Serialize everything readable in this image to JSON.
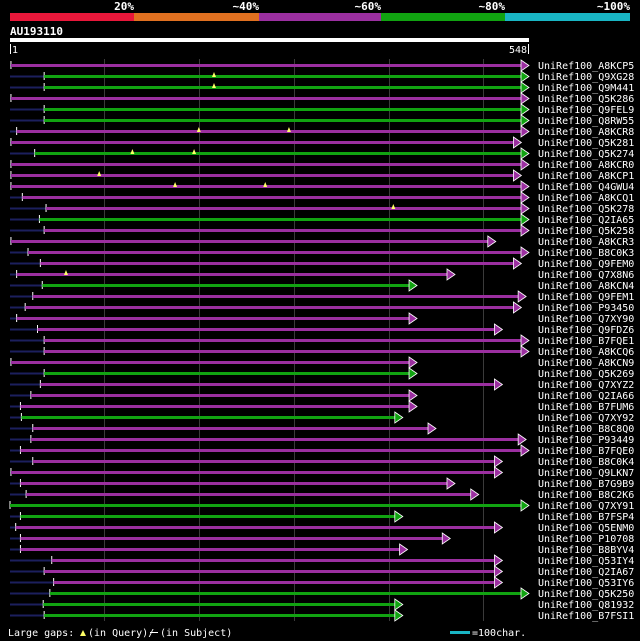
{
  "chart_data": {
    "type": "alignment-overview",
    "query": {
      "name": "AU193110",
      "start": 1,
      "end": 548
    },
    "identity_legend": [
      {
        "label": "20%",
        "color": "#e8173a"
      },
      {
        "label": "~40%",
        "color": "#e07020"
      },
      {
        "label": "~60%",
        "color": "#9b2fa0"
      },
      {
        "label": "~80%",
        "color": "#11a311"
      },
      {
        "label": "~100%",
        "color": "#19b5c4"
      }
    ],
    "footer": {
      "gaps_prefix": "Large gaps: ",
      "gaps_text": "(in Query)/",
      "gaps_suffix": "(in Subject)",
      "scale_label": "=100char."
    },
    "hits": [
      {
        "name": "UniRef100_A8KCP5",
        "start": 2,
        "end": 548,
        "cls": "m",
        "nav": 2,
        "gaps": []
      },
      {
        "name": "UniRef100_Q9XG28",
        "start": 37,
        "end": 548,
        "cls": "g",
        "nav": 37,
        "gaps": [
          216
        ]
      },
      {
        "name": "UniRef100_Q9M441",
        "start": 37,
        "end": 548,
        "cls": "g",
        "nav": 37,
        "gaps": [
          216
        ]
      },
      {
        "name": "UniRef100_Q5K286",
        "start": 2,
        "end": 548,
        "cls": "m",
        "nav": 2,
        "gaps": []
      },
      {
        "name": "UniRef100_Q9FEL9",
        "start": 37,
        "end": 548,
        "cls": "g",
        "nav": 37,
        "gaps": []
      },
      {
        "name": "UniRef100_Q8RW55",
        "start": 37,
        "end": 548,
        "cls": "g",
        "nav": 37,
        "gaps": []
      },
      {
        "name": "UniRef100_A8KCR8",
        "start": 8,
        "end": 548,
        "cls": "m",
        "nav": 8,
        "gaps": [
          200,
          295
        ]
      },
      {
        "name": "UniRef100_Q5K281",
        "start": 2,
        "end": 540,
        "cls": "m",
        "nav": 2,
        "gaps": []
      },
      {
        "name": "UniRef100_Q5K274",
        "start": 27,
        "end": 548,
        "cls": "g",
        "nav": 27,
        "gaps": [
          130,
          195
        ]
      },
      {
        "name": "UniRef100_A8KCR0",
        "start": 2,
        "end": 548,
        "cls": "m",
        "nav": 2,
        "gaps": []
      },
      {
        "name": "UniRef100_A8KCP1",
        "start": 2,
        "end": 540,
        "cls": "m",
        "nav": 2,
        "gaps": [
          95
        ]
      },
      {
        "name": "UniRef100_Q4GWU4",
        "start": 2,
        "end": 548,
        "cls": "m",
        "nav": 2,
        "gaps": [
          175,
          270
        ]
      },
      {
        "name": "UniRef100_A8KCQ1",
        "start": 14,
        "end": 548,
        "cls": "m",
        "nav": 14,
        "gaps": []
      },
      {
        "name": "UniRef100_Q5K278",
        "start": 39,
        "end": 548,
        "cls": "m",
        "nav": 39,
        "gaps": [
          405
        ]
      },
      {
        "name": "UniRef100_Q2IA65",
        "start": 32,
        "end": 548,
        "cls": "g",
        "nav": 32,
        "gaps": []
      },
      {
        "name": "UniRef100_Q5K258",
        "start": 37,
        "end": 548,
        "cls": "m",
        "nav": 37,
        "gaps": []
      },
      {
        "name": "UniRef100_A8KCR3",
        "start": 2,
        "end": 513,
        "cls": "m",
        "nav": 2,
        "gaps": []
      },
      {
        "name": "UniRef100_B8C0K3",
        "start": 20,
        "end": 548,
        "cls": "m",
        "nav": 20,
        "gaps": []
      },
      {
        "name": "UniRef100_Q9FEM0",
        "start": 33,
        "end": 540,
        "cls": "m",
        "nav": 33,
        "gaps": []
      },
      {
        "name": "UniRef100_Q7X8N6",
        "start": 8,
        "end": 470,
        "cls": "m",
        "nav": 8,
        "gaps": [
          60
        ]
      },
      {
        "name": "UniRef100_A8KCN4",
        "start": 35,
        "end": 430,
        "cls": "g",
        "nav": 35,
        "gaps": []
      },
      {
        "name": "UniRef100_Q9FEM1",
        "start": 25,
        "end": 545,
        "cls": "m",
        "nav": 25,
        "gaps": []
      },
      {
        "name": "UniRef100_P93450",
        "start": 17,
        "end": 540,
        "cls": "m",
        "nav": 17,
        "gaps": []
      },
      {
        "name": "UniRef100_Q7XY90",
        "start": 8,
        "end": 430,
        "cls": "m",
        "nav": 8,
        "gaps": []
      },
      {
        "name": "UniRef100_Q9FDZ6",
        "start": 30,
        "end": 520,
        "cls": "m",
        "nav": 30,
        "gaps": []
      },
      {
        "name": "UniRef100_B7FQE1",
        "start": 37,
        "end": 548,
        "cls": "m",
        "nav": 37,
        "gaps": []
      },
      {
        "name": "UniRef100_A8KCQ6",
        "start": 37,
        "end": 548,
        "cls": "m",
        "nav": 37,
        "gaps": []
      },
      {
        "name": "UniRef100_A8KCN9",
        "start": 2,
        "end": 430,
        "cls": "m",
        "nav": 2,
        "gaps": []
      },
      {
        "name": "UniRef100_Q5K269",
        "start": 37,
        "end": 430,
        "cls": "g",
        "nav": 37,
        "gaps": []
      },
      {
        "name": "UniRef100_Q7XYZ2",
        "start": 33,
        "end": 520,
        "cls": "m",
        "nav": 33,
        "gaps": []
      },
      {
        "name": "UniRef100_Q2IA66",
        "start": 23,
        "end": 430,
        "cls": "m",
        "nav": 23,
        "gaps": []
      },
      {
        "name": "UniRef100_B7FUM6",
        "start": 12,
        "end": 430,
        "cls": "m",
        "nav": 12,
        "gaps": []
      },
      {
        "name": "UniRef100_Q7XY92",
        "start": 13,
        "end": 415,
        "cls": "g",
        "nav": 13,
        "gaps": []
      },
      {
        "name": "UniRef100_B8C8Q0",
        "start": 25,
        "end": 450,
        "cls": "m",
        "nav": 25,
        "gaps": []
      },
      {
        "name": "UniRef100_P93449",
        "start": 23,
        "end": 545,
        "cls": "m",
        "nav": 23,
        "gaps": []
      },
      {
        "name": "UniRef100_B7FQE0",
        "start": 12,
        "end": 548,
        "cls": "m",
        "nav": 12,
        "gaps": []
      },
      {
        "name": "UniRef100_B8C0K4",
        "start": 25,
        "end": 520,
        "cls": "m",
        "nav": 25,
        "gaps": []
      },
      {
        "name": "UniRef100_Q9LKN7",
        "start": 2,
        "end": 520,
        "cls": "m",
        "nav": 2,
        "gaps": []
      },
      {
        "name": "UniRef100_B7G9B9",
        "start": 12,
        "end": 470,
        "cls": "m",
        "nav": 12,
        "gaps": []
      },
      {
        "name": "UniRef100_B8C2K6",
        "start": 18,
        "end": 495,
        "cls": "m",
        "nav": 18,
        "gaps": []
      },
      {
        "name": "UniRef100_Q7XY91",
        "start": 1,
        "end": 548,
        "cls": "g",
        "nav": 1,
        "gaps": []
      },
      {
        "name": "UniRef100_B7FSP4",
        "start": 12,
        "end": 415,
        "cls": "g",
        "nav": 12,
        "gaps": []
      },
      {
        "name": "UniRef100_Q5ENM0",
        "start": 7,
        "end": 520,
        "cls": "m",
        "nav": 7,
        "gaps": []
      },
      {
        "name": "UniRef100_P10708",
        "start": 12,
        "end": 465,
        "cls": "m",
        "nav": 12,
        "gaps": []
      },
      {
        "name": "UniRef100_B8BYV4",
        "start": 12,
        "end": 420,
        "cls": "m",
        "nav": 12,
        "gaps": []
      },
      {
        "name": "UniRef100_Q53IY4",
        "start": 45,
        "end": 520,
        "cls": "m",
        "nav": 45,
        "gaps": []
      },
      {
        "name": "UniRef100_Q2IA67",
        "start": 37,
        "end": 520,
        "cls": "m",
        "nav": 37,
        "gaps": []
      },
      {
        "name": "UniRef100_Q53IY6",
        "start": 47,
        "end": 520,
        "cls": "m",
        "nav": 47,
        "gaps": []
      },
      {
        "name": "UniRef100_Q5K250",
        "start": 43,
        "end": 548,
        "cls": "g",
        "nav": 43,
        "gaps": []
      },
      {
        "name": "UniRef100_Q81932",
        "start": 36,
        "end": 415,
        "cls": "g",
        "nav": 36,
        "gaps": []
      },
      {
        "name": "UniRef100_B7FSI1",
        "start": 37,
        "end": 415,
        "cls": "g",
        "nav": 37,
        "gaps": []
      }
    ]
  }
}
